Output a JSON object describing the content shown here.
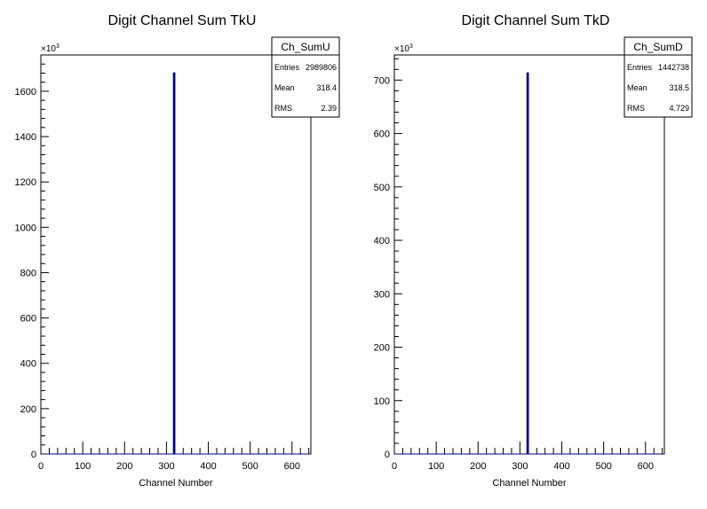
{
  "chart_data": [
    {
      "type": "bar",
      "title": "Digit Channel Sum TkU",
      "xlabel": "Channel Number",
      "ylabel": "",
      "y_multiplier_base": "×10",
      "y_multiplier_exp": "3",
      "xlim": [
        0,
        645
      ],
      "ylim": [
        0,
        1760
      ],
      "x_ticks": [
        "0",
        "100",
        "200",
        "300",
        "400",
        "500",
        "600"
      ],
      "y_ticks": [
        "0",
        "200",
        "400",
        "600",
        "800",
        "1000",
        "1200",
        "1400",
        "1600"
      ],
      "bins": [
        {
          "x": 318.4,
          "width": 2.4,
          "value": 1680
        }
      ],
      "stats": {
        "name": "Ch_SumU",
        "rows": [
          {
            "label": "Entries",
            "value": "2989806"
          },
          {
            "label": "Mean",
            "value": "318.4"
          },
          {
            "label": "RMS",
            "value": "2.39"
          }
        ]
      },
      "line_color": "#000080"
    },
    {
      "type": "bar",
      "title": "Digit Channel Sum TkD",
      "xlabel": "Channel Number",
      "ylabel": "",
      "y_multiplier_base": "×10",
      "y_multiplier_exp": "3",
      "xlim": [
        0,
        645
      ],
      "ylim": [
        0,
        747
      ],
      "x_ticks": [
        "0",
        "100",
        "200",
        "300",
        "400",
        "500",
        "600"
      ],
      "y_ticks": [
        "0",
        "100",
        "200",
        "300",
        "400",
        "500",
        "600",
        "700"
      ],
      "bins": [
        {
          "x": 318.5,
          "width": 2.4,
          "value": 713
        }
      ],
      "stats": {
        "name": "Ch_SumD",
        "rows": [
          {
            "label": "Entries",
            "value": "1442738"
          },
          {
            "label": "Mean",
            "value": "318.5"
          },
          {
            "label": "RMS",
            "value": "4.729"
          }
        ]
      },
      "line_color": "#000080"
    }
  ]
}
